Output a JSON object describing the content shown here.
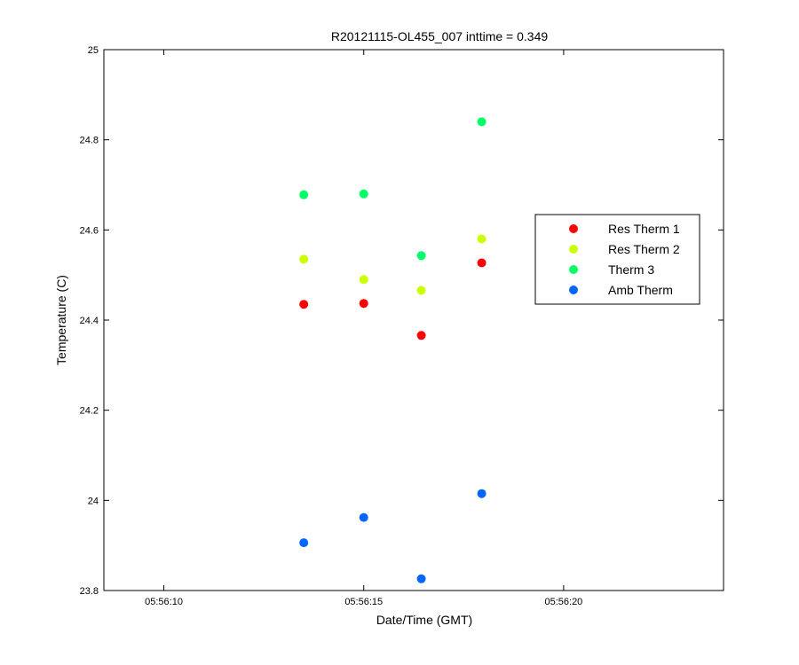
{
  "chart_data": {
    "type": "scatter",
    "title": "R20121115-OL455_007 inttime = 0.349",
    "xlabel": "Date/Time (GMT)",
    "ylabel": "Temperature (C)",
    "x_axis_type": "time",
    "xlim": [
      "05:56:08.500",
      "05:56:23.999"
    ],
    "ylim": [
      23.8,
      25
    ],
    "x_ticks": [
      "05:56:10",
      "05:56:15",
      "05:56:20"
    ],
    "y_ticks": [
      "23.8",
      "24",
      "24.2",
      "24.4",
      "24.6",
      "24.8",
      "25"
    ],
    "grid": false,
    "legend_position": "top-right",
    "series": [
      {
        "name": "Res Therm 1",
        "color": "#ff0000",
        "points": [
          {
            "x": "05:56:13.500",
            "y": 24.435
          },
          {
            "x": "05:56:15.000",
            "y": 24.437
          },
          {
            "x": "05:56:16.440",
            "y": 24.366
          },
          {
            "x": "05:56:17.950",
            "y": 24.527
          }
        ]
      },
      {
        "name": "Res Therm 2",
        "color": "#ccff00",
        "points": [
          {
            "x": "05:56:13.500",
            "y": 24.535
          },
          {
            "x": "05:56:15.000",
            "y": 24.49
          },
          {
            "x": "05:56:16.440",
            "y": 24.466
          },
          {
            "x": "05:56:17.950",
            "y": 24.58
          }
        ]
      },
      {
        "name": "Therm 3",
        "color": "#00ff66",
        "points": [
          {
            "x": "05:56:13.500",
            "y": 24.678
          },
          {
            "x": "05:56:15.000",
            "y": 24.68
          },
          {
            "x": "05:56:16.440",
            "y": 24.543
          },
          {
            "x": "05:56:17.950",
            "y": 24.84
          }
        ]
      },
      {
        "name": "Amb Therm",
        "color": "#0066ff",
        "points": [
          {
            "x": "05:56:13.500",
            "y": 23.906
          },
          {
            "x": "05:56:15.000",
            "y": 23.962
          },
          {
            "x": "05:56:16.440",
            "y": 23.826
          },
          {
            "x": "05:56:17.950",
            "y": 24.015
          }
        ]
      }
    ]
  }
}
